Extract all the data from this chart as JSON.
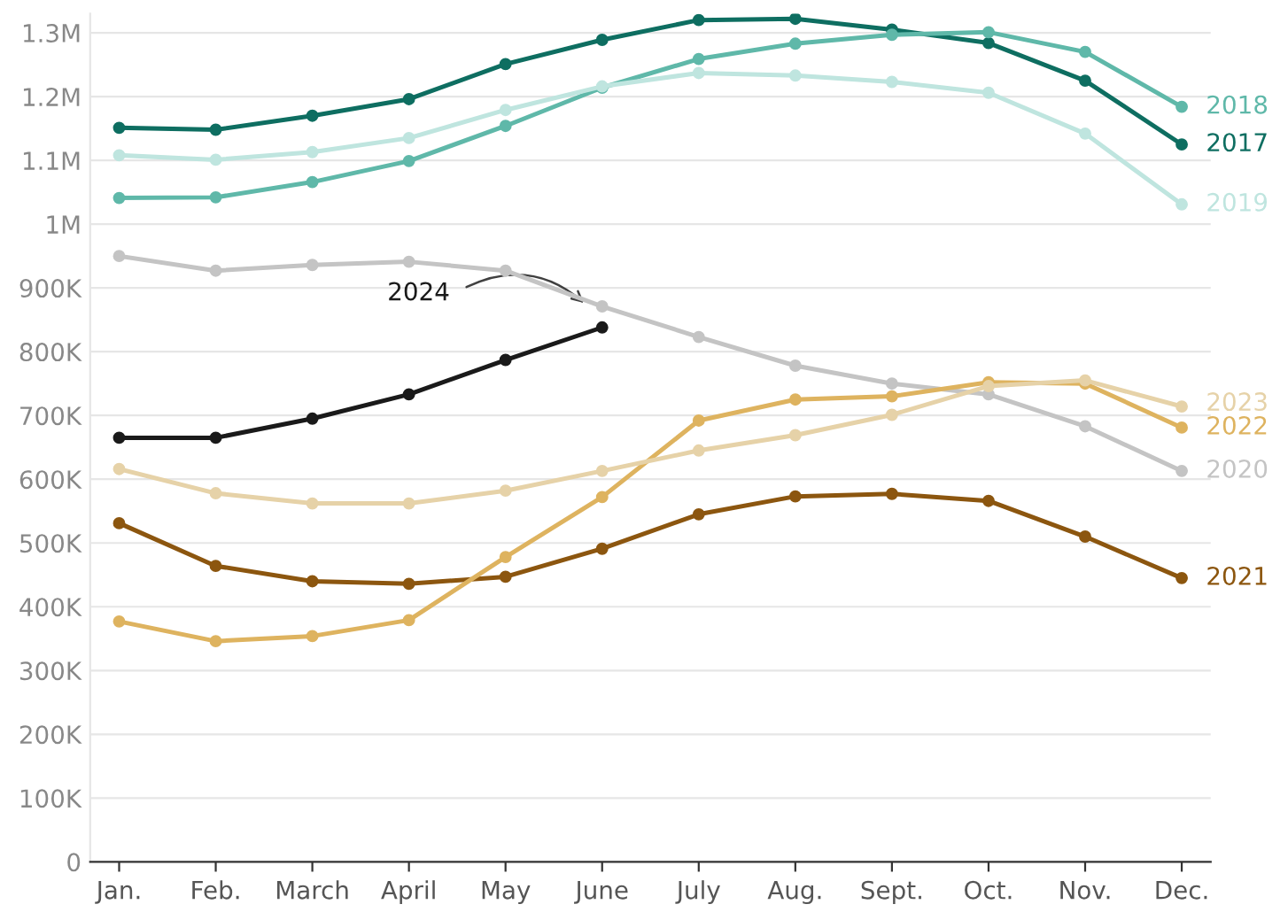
{
  "chart_data": {
    "type": "line",
    "categories": [
      "Jan.",
      "Feb.",
      "March",
      "April",
      "May",
      "June",
      "July",
      "Aug.",
      "Sept.",
      "Oct.",
      "Nov.",
      "Dec."
    ],
    "ylim": [
      0,
      1330000
    ],
    "yticks": [
      0,
      {
        "value": 100000,
        "label": "100K"
      },
      {
        "value": 200000,
        "label": "200K"
      },
      {
        "value": 300000,
        "label": "300K"
      },
      {
        "value": 400000,
        "label": "400K"
      },
      {
        "value": 500000,
        "label": "500K"
      },
      {
        "value": 600000,
        "label": "600K"
      },
      {
        "value": 700000,
        "label": "700K"
      },
      {
        "value": 800000,
        "label": "800K"
      },
      {
        "value": 900000,
        "label": "900K"
      },
      {
        "value": 1000000,
        "label": "1M"
      },
      {
        "value": 1100000,
        "label": "1.1M"
      },
      {
        "value": 1200000,
        "label": "1.2M"
      },
      {
        "value": 1300000,
        "label": "1.3M"
      }
    ],
    "grid": "y",
    "marker": "circle",
    "line_style": "solid",
    "legend": false,
    "series": [
      {
        "name": "2017",
        "color": "#0e6e61",
        "values": [
          1151000,
          1148000,
          1170000,
          1196000,
          1251000,
          1289000,
          1320000,
          1322000,
          1305000,
          1284000,
          1225000,
          1125000
        ]
      },
      {
        "name": "2018",
        "color": "#5fb8a9",
        "values": [
          1041000,
          1042000,
          1066000,
          1099000,
          1154000,
          1214000,
          1259000,
          1283000,
          1297000,
          1301000,
          1270000,
          1184000
        ]
      },
      {
        "name": "2019",
        "color": "#bfe5df",
        "values": [
          1108000,
          1101000,
          1113000,
          1135000,
          1179000,
          1216000,
          1237000,
          1233000,
          1223000,
          1206000,
          1142000,
          1031000
        ]
      },
      {
        "name": "2020",
        "color": "#c4c4c4",
        "values": [
          950000,
          927000,
          936000,
          941000,
          927000,
          871000,
          823000,
          778000,
          750000,
          733000,
          683000,
          613000
        ]
      },
      {
        "name": "2021",
        "color": "#8c560f",
        "values": [
          531000,
          464000,
          440000,
          436000,
          447000,
          491000,
          545000,
          573000,
          577000,
          566000,
          510000,
          445000
        ]
      },
      {
        "name": "2022",
        "color": "#deb35f",
        "values": [
          377000,
          346000,
          354000,
          379000,
          478000,
          572000,
          692000,
          725000,
          730000,
          752000,
          750000,
          681000
        ]
      },
      {
        "name": "2023",
        "color": "#e6d2a8",
        "values": [
          616000,
          578000,
          562000,
          562000,
          582000,
          613000,
          645000,
          669000,
          701000,
          746000,
          755000,
          714000
        ]
      },
      {
        "name": "2024",
        "color": "#1a1a1a",
        "values": [
          665000,
          665000,
          695000,
          733000,
          787000,
          838000,
          null,
          null,
          null,
          null,
          null,
          null
        ]
      }
    ]
  }
}
